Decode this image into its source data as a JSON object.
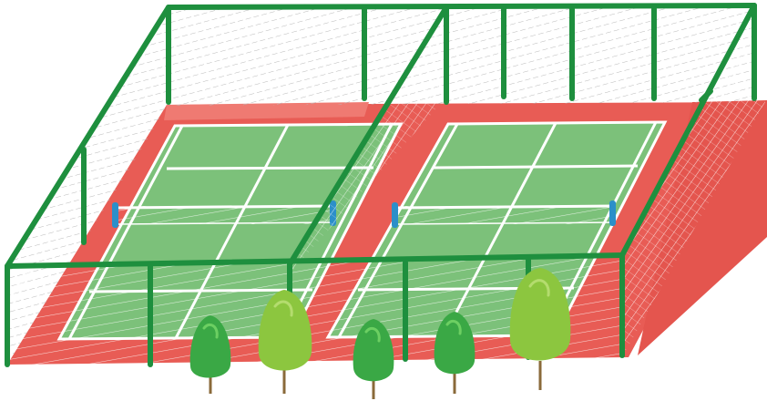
{
  "scene": {
    "subject": "two-tennis-courts-fenced",
    "colors": {
      "background": "#ffffff",
      "surround": "#e85c55",
      "court": "#7cc17a",
      "court_lines": "#ffffff",
      "fence": "#1e8f3e",
      "net_mesh": "#b8b8b8",
      "net_post": "#2c8fc9",
      "tree_light": "#8cc63f",
      "tree_dark": "#3aa845",
      "tree_trunk": "#8a6a3a"
    },
    "courts": [
      {
        "name": "left-court"
      },
      {
        "name": "right-court"
      }
    ],
    "trees": [
      {
        "name": "tree-1",
        "shade": "dark"
      },
      {
        "name": "tree-2",
        "shade": "light"
      },
      {
        "name": "tree-3",
        "shade": "dark"
      },
      {
        "name": "tree-4",
        "shade": "dark"
      },
      {
        "name": "tree-5",
        "shade": "light"
      }
    ]
  }
}
